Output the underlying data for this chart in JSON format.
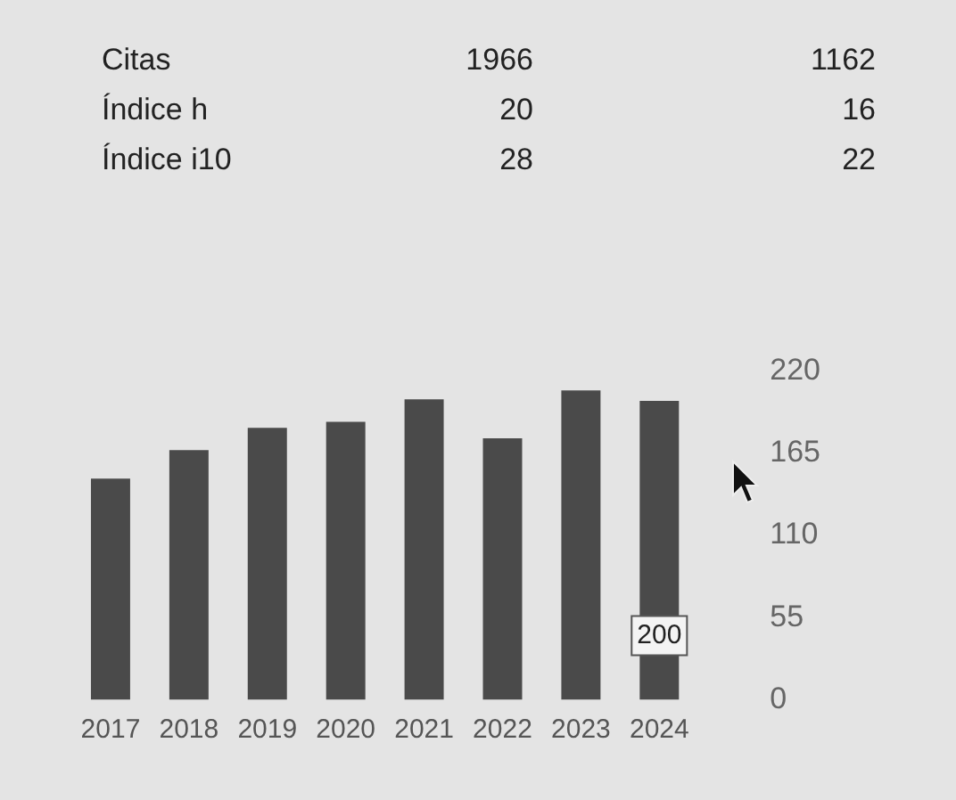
{
  "chart_data": {
    "type": "bar",
    "categories": [
      "2017",
      "2018",
      "2019",
      "2020",
      "2021",
      "2022",
      "2023",
      "2024"
    ],
    "values": [
      148,
      167,
      182,
      186,
      201,
      175,
      207,
      200
    ],
    "value_labels": [
      null,
      null,
      null,
      null,
      null,
      null,
      null,
      "200"
    ],
    "color": "#4a4a4a",
    "ylim": [
      0,
      220
    ],
    "yticks": [
      0,
      55,
      110,
      165,
      220
    ],
    "annotations": [
      "Citas",
      "1966",
      "1162",
      "Índice h",
      "20",
      "16",
      "Índice i10",
      "28",
      "22"
    ]
  }
}
